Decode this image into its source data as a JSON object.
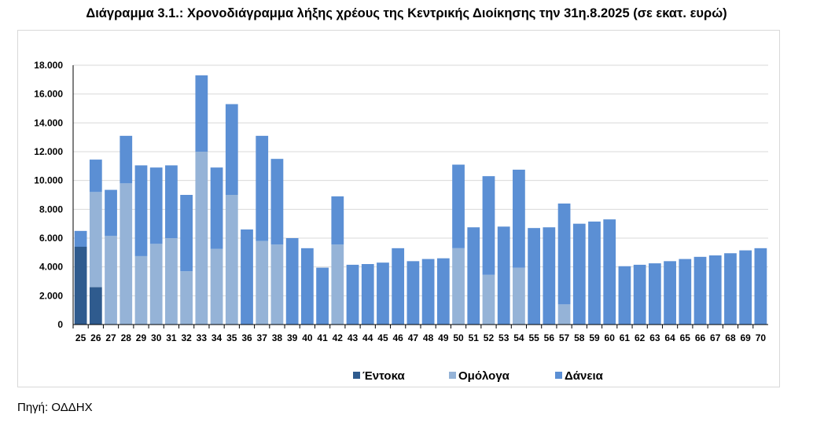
{
  "title": "Διάγραμμα 3.1.: Χρονοδιάγραμμα λήξης χρέους της Κεντρικής Διοίκησης την 31η.8.2025 (σε εκατ. ευρώ)",
  "source": "Πηγή: ΟΔΔΗΧ",
  "colors": {
    "entoka": "#2f5b8e",
    "omologa": "#95b3d7",
    "daneia": "#5b8fd4",
    "grid": "#d9d9d9",
    "axis": "#000000"
  },
  "chart_data": {
    "type": "bar",
    "stacked": true,
    "title": "Διάγραμμα 3.1.: Χρονοδιάγραμμα λήξης χρέους της Κεντρικής Διοίκησης την 31η.8.2025 (σε εκατ. ευρώ)",
    "xlabel": "",
    "ylabel": "",
    "ylim": [
      0,
      18000
    ],
    "yticks": [
      "0",
      "2.000",
      "4.000",
      "6.000",
      "8.000",
      "10.000",
      "12.000",
      "14.000",
      "16.000",
      "18.000"
    ],
    "grid": true,
    "legend_position": "bottom",
    "categories": [
      "25",
      "26",
      "27",
      "28",
      "29",
      "30",
      "31",
      "32",
      "33",
      "34",
      "35",
      "36",
      "37",
      "38",
      "39",
      "40",
      "41",
      "42",
      "43",
      "44",
      "45",
      "46",
      "47",
      "48",
      "49",
      "50",
      "51",
      "52",
      "53",
      "54",
      "55",
      "56",
      "57",
      "58",
      "59",
      "60",
      "61",
      "62",
      "63",
      "64",
      "65",
      "66",
      "67",
      "68",
      "69",
      "70"
    ],
    "series": [
      {
        "name": "Έντοκα",
        "color": "#2f5b8e",
        "values": [
          5400,
          2600,
          0,
          0,
          0,
          0,
          0,
          0,
          0,
          0,
          0,
          0,
          0,
          0,
          0,
          0,
          0,
          0,
          0,
          0,
          0,
          0,
          0,
          0,
          0,
          0,
          0,
          0,
          0,
          0,
          0,
          0,
          0,
          0,
          0,
          0,
          0,
          0,
          0,
          0,
          0,
          0,
          0,
          0,
          0,
          0
        ]
      },
      {
        "name": "Ομόλογα",
        "color": "#95b3d7",
        "values": [
          0,
          6600,
          6150,
          9800,
          4750,
          5600,
          6000,
          3700,
          12000,
          5250,
          9000,
          0,
          5800,
          5550,
          0,
          0,
          0,
          5550,
          0,
          0,
          0,
          0,
          0,
          0,
          0,
          5300,
          0,
          3450,
          0,
          3950,
          0,
          0,
          1400,
          0,
          0,
          0,
          0,
          0,
          0,
          0,
          0,
          0,
          0,
          0,
          0,
          0
        ]
      },
      {
        "name": "Δάνεια",
        "color": "#5b8fd4",
        "values": [
          1100,
          2250,
          3200,
          3300,
          6300,
          5300,
          5050,
          5300,
          5300,
          5650,
          6300,
          6600,
          7300,
          5950,
          6000,
          5300,
          3950,
          3350,
          4150,
          4200,
          4300,
          5300,
          4400,
          4550,
          4600,
          5800,
          6750,
          6850,
          6800,
          6800,
          6700,
          6750,
          7000,
          7000,
          7150,
          7300,
          4050,
          4150,
          4250,
          4400,
          4550,
          4700,
          4800,
          4950,
          5150,
          5300
        ]
      }
    ]
  }
}
